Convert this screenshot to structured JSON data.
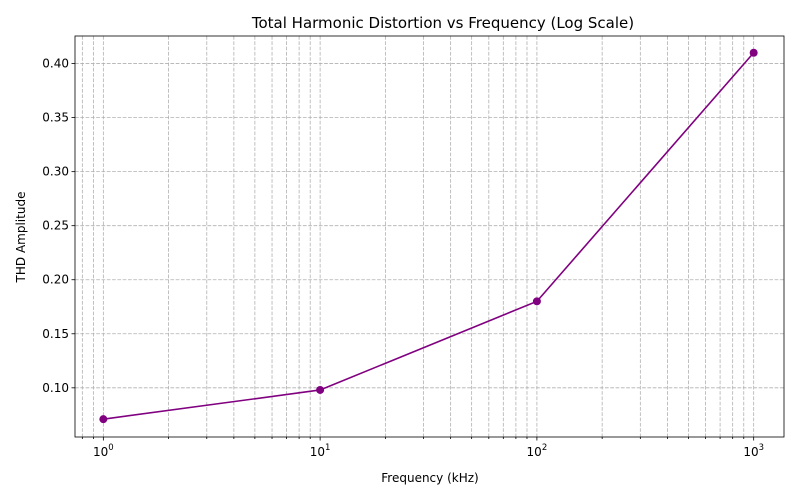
{
  "chart_data": {
    "type": "line",
    "title": "Total Harmonic Distortion vs Frequency (Log Scale)",
    "xlabel": "Frequency (kHz)",
    "ylabel": "THD Amplitude",
    "x_scale": "log",
    "xlim": [
      0.74,
      1380
    ],
    "ylim": [
      0.0545,
      0.4255
    ],
    "grid": true,
    "x_ticks": [
      {
        "base": "10",
        "exp": "0",
        "value": 1
      },
      {
        "base": "10",
        "exp": "1",
        "value": 10
      },
      {
        "base": "10",
        "exp": "2",
        "value": 100
      },
      {
        "base": "10",
        "exp": "3",
        "value": 1000
      }
    ],
    "y_ticks": [
      "0.10",
      "0.15",
      "0.20",
      "0.25",
      "0.30",
      "0.35",
      "0.40"
    ],
    "series": [
      {
        "color": "#800080",
        "marker": "circle",
        "x": [
          1,
          10,
          100,
          1000
        ],
        "y": [
          0.071,
          0.098,
          0.18,
          0.41
        ]
      }
    ]
  }
}
